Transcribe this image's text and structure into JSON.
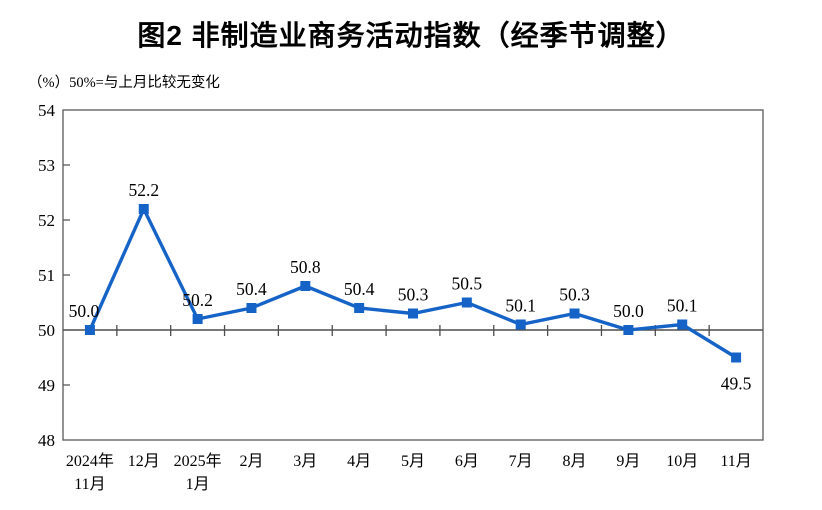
{
  "chart_data": {
    "type": "line",
    "title": "图2 非制造业商务活动指数（经季节调整）",
    "subtitle": "（%）50%=与上月比较无变化",
    "categories": [
      "2024年\n11月",
      "12月",
      "2025年\n1月",
      "2月",
      "3月",
      "4月",
      "5月",
      "6月",
      "7月",
      "8月",
      "9月",
      "10月",
      "11月"
    ],
    "values": [
      50.0,
      52.2,
      50.2,
      50.4,
      50.8,
      50.4,
      50.3,
      50.5,
      50.1,
      50.3,
      50.0,
      50.1,
      49.5
    ],
    "data_labels": [
      "50.0",
      "52.2",
      "50.2",
      "50.4",
      "50.8",
      "50.4",
      "50.3",
      "50.5",
      "50.1",
      "50.3",
      "50.0",
      "50.1",
      "49.5"
    ],
    "xlabel": "",
    "ylabel": "",
    "ylim": [
      48,
      54
    ],
    "y_ticks": [
      48,
      49,
      50,
      51,
      52,
      53,
      54
    ],
    "reference_line": 50,
    "grid": false,
    "legend_position": "none",
    "line_color": "#1663C7",
    "marker_shape": "square",
    "axis_color": "#595959",
    "reference_line_color": "#4d4d4d",
    "text_color": "#000000",
    "label_below_indices": [
      12
    ]
  }
}
